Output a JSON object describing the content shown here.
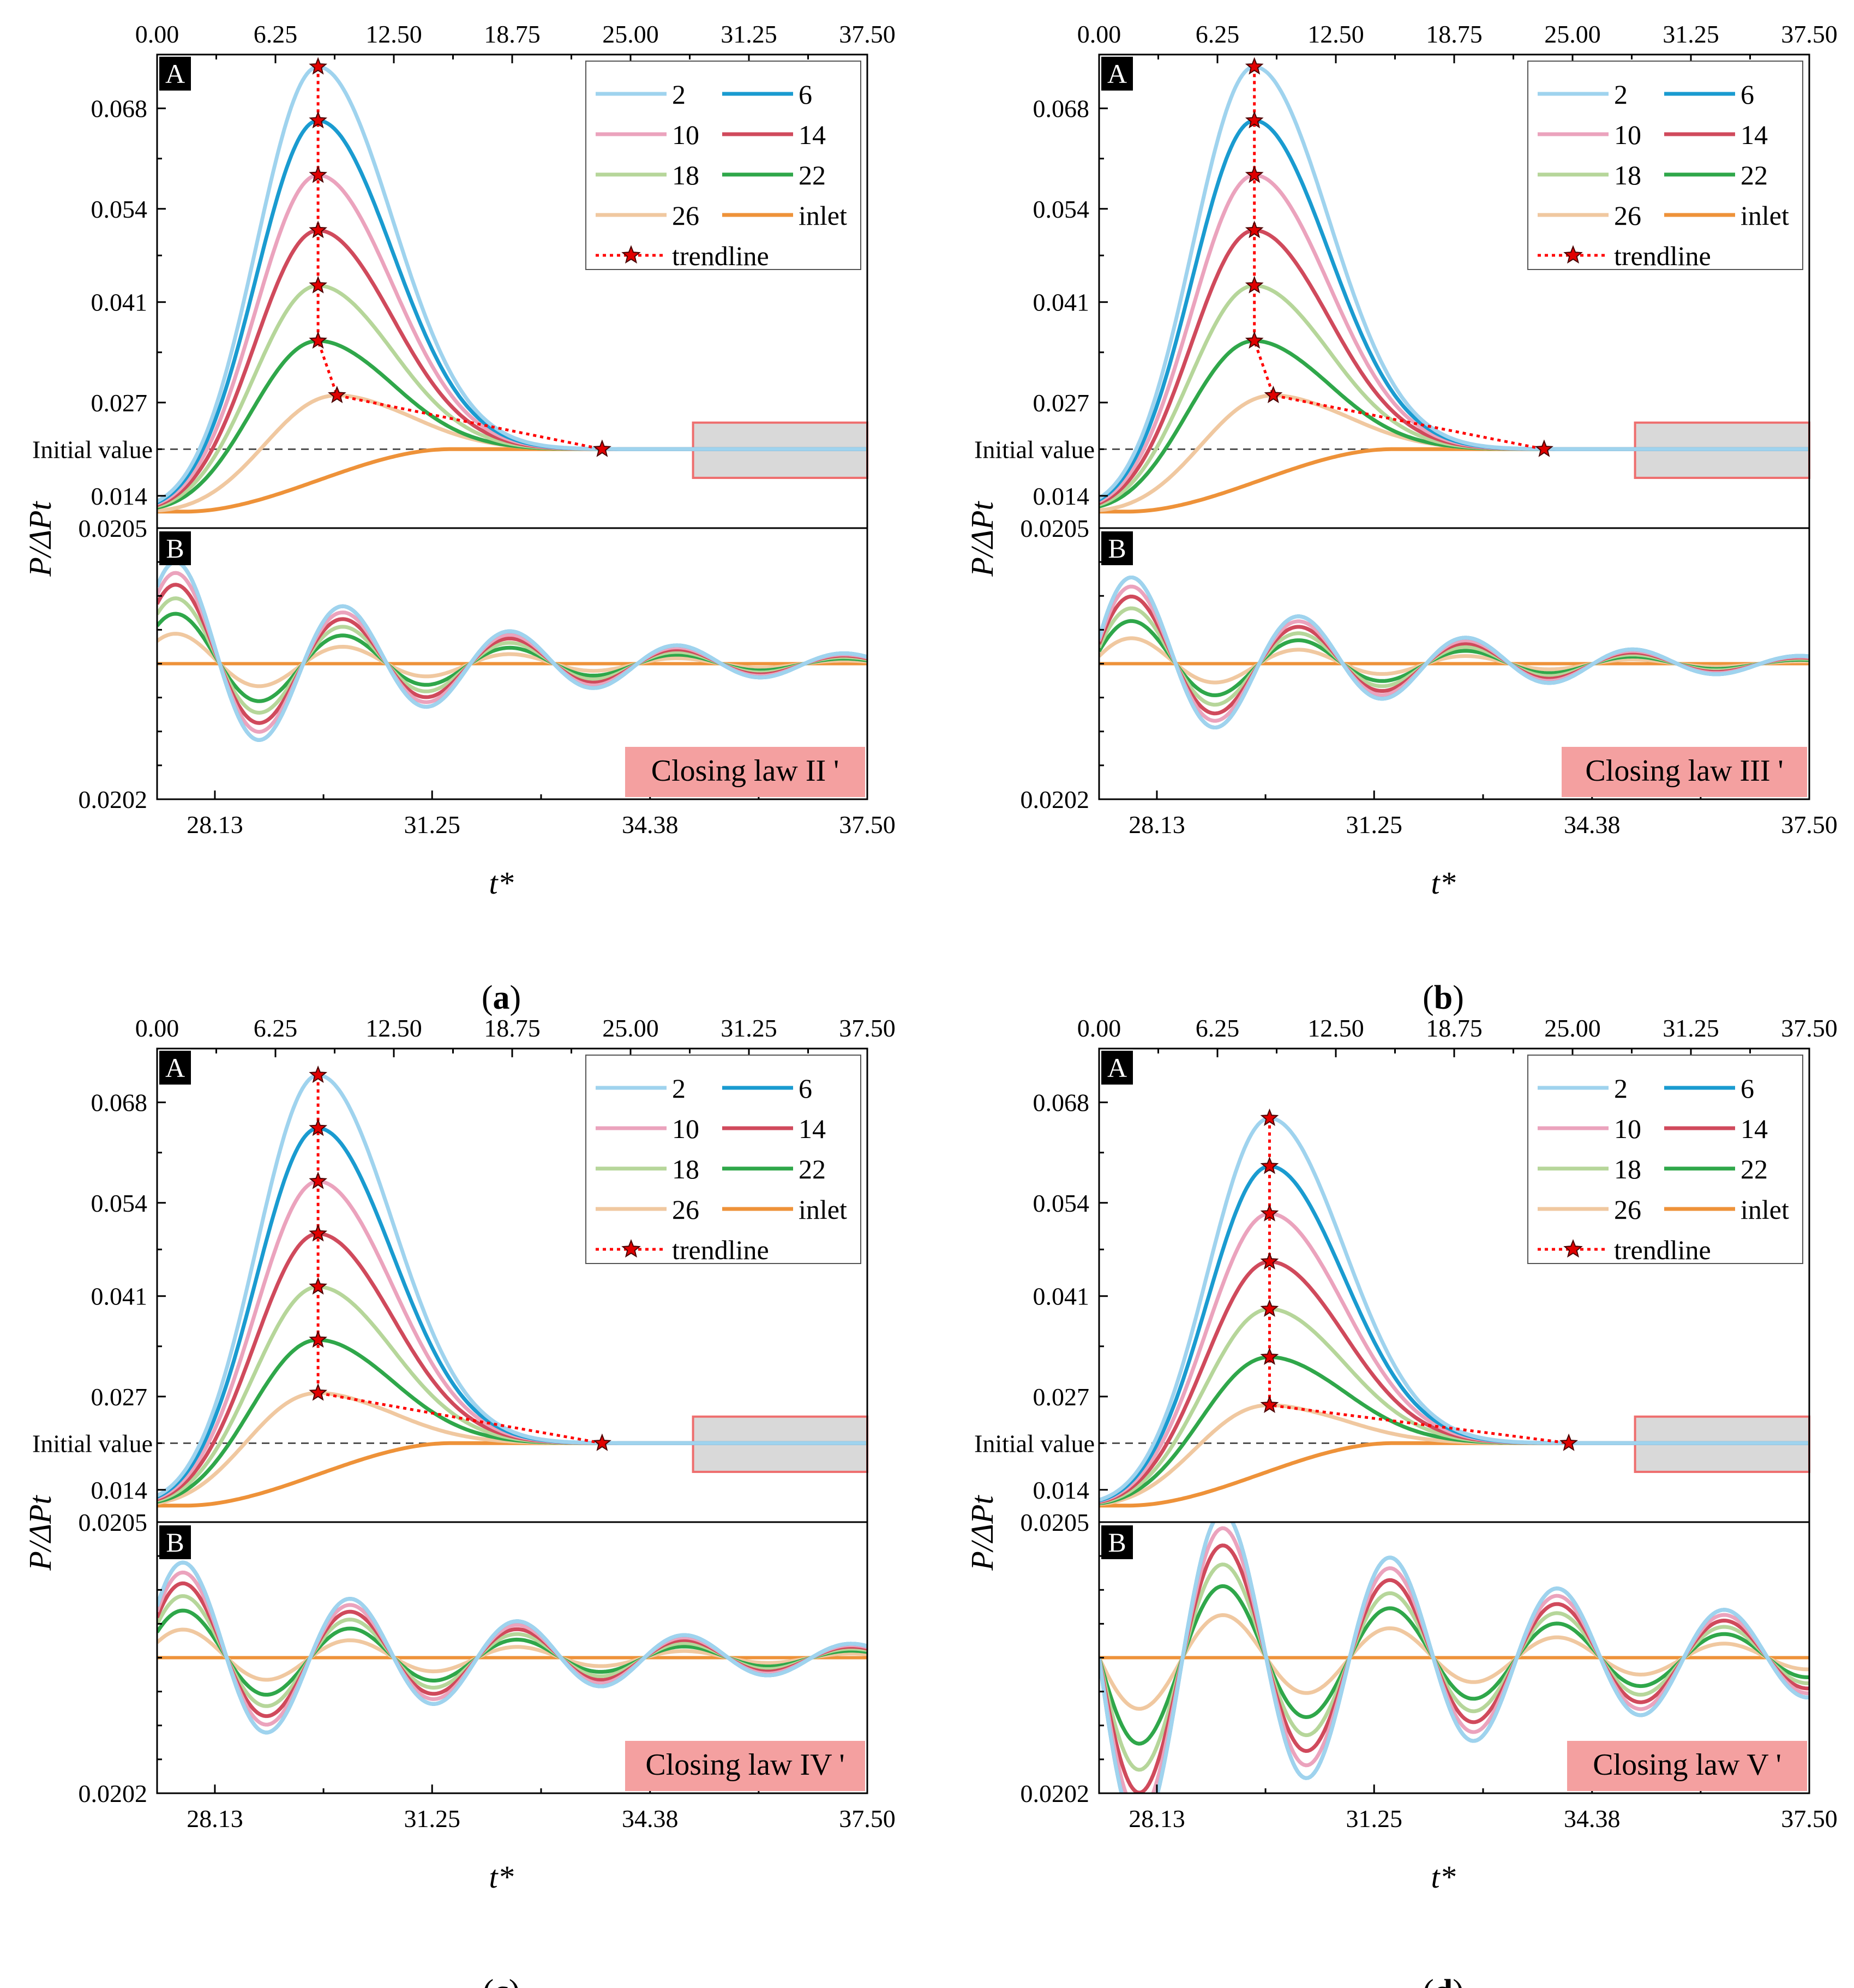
{
  "figure": {
    "panels": [
      {
        "id": "a",
        "caption": "a",
        "law_label": "Closing law II '"
      },
      {
        "id": "b",
        "caption": "b",
        "law_label": "Closing law III '"
      },
      {
        "id": "c",
        "caption": "c",
        "law_label": "Closing law IV '"
      },
      {
        "id": "d",
        "caption": "d",
        "law_label": "Closing law V '"
      }
    ],
    "subplot_tags": [
      "A",
      "B"
    ],
    "y_axis_label": "P/ΔPt",
    "x_axis_label": "t*",
    "initial_value_label": "Initial value",
    "top_x_ticks": [
      "0.00",
      "6.25",
      "12.50",
      "18.75",
      "25.00",
      "31.25",
      "37.50"
    ],
    "upper_y_ticks": [
      "0.068",
      "0.054",
      "0.041",
      "0.027",
      "0.014"
    ],
    "lower_y_ticks": [
      "0.0205",
      "0.0202"
    ],
    "bottom_x_ticks": [
      "28.13",
      "31.25",
      "34.38",
      "37.50"
    ],
    "legend": [
      {
        "label": "2",
        "color": "#9fd3ee"
      },
      {
        "label": "6",
        "color": "#1a9bd0"
      },
      {
        "label": "10",
        "color": "#eba3bd"
      },
      {
        "label": "14",
        "color": "#d04a5c"
      },
      {
        "label": "18",
        "color": "#b6d69a"
      },
      {
        "label": "22",
        "color": "#2fa74a"
      },
      {
        "label": "26",
        "color": "#f0c8a0"
      },
      {
        "label": "inlet",
        "color": "#ee9239"
      },
      {
        "label": "trendline",
        "color": "#ff0000"
      }
    ]
  },
  "chart_data": [
    {
      "type": "line",
      "panel": "a",
      "title": "Closing law II '",
      "xlabel": "t*",
      "ylabel": "P/ΔPt",
      "upper": {
        "xlim": [
          0,
          37.5
        ],
        "ylim": [
          0.0095,
          0.0755
        ],
        "initial_value": 0.0205,
        "series": [
          {
            "name": "2",
            "peak_t": 8.5,
            "peak": 0.0738
          },
          {
            "name": "6",
            "peak_t": 8.5,
            "peak": 0.0663
          },
          {
            "name": "10",
            "peak_t": 8.5,
            "peak": 0.0587
          },
          {
            "name": "14",
            "peak_t": 8.5,
            "peak": 0.051
          },
          {
            "name": "18",
            "peak_t": 8.5,
            "peak": 0.0433
          },
          {
            "name": "22",
            "peak_t": 8.5,
            "peak": 0.0356
          },
          {
            "name": "26",
            "peak_t": 9.5,
            "peak": 0.028
          },
          {
            "name": "inlet",
            "start": 0.0118,
            "end": 0.0205
          }
        ],
        "trendline": [
          [
            8.5,
            0.0738
          ],
          [
            8.5,
            0.0663
          ],
          [
            8.5,
            0.0587
          ],
          [
            8.5,
            0.051
          ],
          [
            8.5,
            0.0433
          ],
          [
            8.5,
            0.0356
          ],
          [
            9.5,
            0.028
          ],
          [
            23.5,
            0.0205
          ]
        ]
      },
      "lower": {
        "xlim": [
          27.3,
          37.5
        ],
        "ylim": [
          0.0202,
          0.0205
        ],
        "first_peak_t": 27.6,
        "period": 2.4,
        "decay": 4.2,
        "amplitudes": {
          "2": 0.000112,
          "6": 0.000112,
          "10": 0.0001,
          "14": 8.7e-05,
          "18": 7.2e-05,
          "22": 5.5e-05,
          "26": 3.3e-05
        }
      }
    },
    {
      "type": "line",
      "panel": "b",
      "title": "Closing law III '",
      "xlabel": "t*",
      "ylabel": "P/ΔPt",
      "upper": {
        "xlim": [
          0,
          37.5
        ],
        "ylim": [
          0.0095,
          0.0755
        ],
        "initial_value": 0.0205,
        "series": [
          {
            "name": "2",
            "peak_t": 8.2,
            "peak": 0.0738
          },
          {
            "name": "6",
            "peak_t": 8.2,
            "peak": 0.0663
          },
          {
            "name": "10",
            "peak_t": 8.2,
            "peak": 0.0587
          },
          {
            "name": "14",
            "peak_t": 8.2,
            "peak": 0.051
          },
          {
            "name": "18",
            "peak_t": 8.2,
            "peak": 0.0433
          },
          {
            "name": "22",
            "peak_t": 8.2,
            "peak": 0.0356
          },
          {
            "name": "26",
            "peak_t": 9.2,
            "peak": 0.028
          },
          {
            "name": "inlet",
            "start": 0.0118,
            "end": 0.0205
          }
        ],
        "trendline": [
          [
            8.2,
            0.0738
          ],
          [
            8.2,
            0.0663
          ],
          [
            8.2,
            0.0587
          ],
          [
            8.2,
            0.051
          ],
          [
            8.2,
            0.0433
          ],
          [
            8.2,
            0.0356
          ],
          [
            9.2,
            0.028
          ],
          [
            23.5,
            0.0205
          ]
        ]
      },
      "lower": {
        "xlim": [
          27.3,
          37.5
        ],
        "ylim": [
          0.0202,
          0.0205
        ],
        "first_peak_t": 27.8,
        "period": 2.4,
        "decay": 4.0,
        "amplitudes": {
          "2": 9.5e-05,
          "6": 9.5e-05,
          "10": 8.5e-05,
          "14": 7.4e-05,
          "18": 6.1e-05,
          "22": 4.7e-05,
          "26": 2.8e-05
        }
      }
    },
    {
      "type": "line",
      "panel": "c",
      "title": "Closing law IV '",
      "xlabel": "t*",
      "ylabel": "P/ΔPt",
      "upper": {
        "xlim": [
          0,
          37.5
        ],
        "ylim": [
          0.0095,
          0.0755
        ],
        "initial_value": 0.0205,
        "series": [
          {
            "name": "2",
            "peak_t": 8.5,
            "peak": 0.0718
          },
          {
            "name": "6",
            "peak_t": 8.5,
            "peak": 0.0644
          },
          {
            "name": "10",
            "peak_t": 8.5,
            "peak": 0.057
          },
          {
            "name": "14",
            "peak_t": 8.5,
            "peak": 0.0497
          },
          {
            "name": "18",
            "peak_t": 8.5,
            "peak": 0.0423
          },
          {
            "name": "22",
            "peak_t": 8.5,
            "peak": 0.0349
          },
          {
            "name": "26",
            "peak_t": 8.5,
            "peak": 0.0275
          },
          {
            "name": "inlet",
            "start": 0.0118,
            "end": 0.0205
          }
        ],
        "trendline": [
          [
            8.5,
            0.0718
          ],
          [
            8.5,
            0.0644
          ],
          [
            8.5,
            0.057
          ],
          [
            8.5,
            0.0497
          ],
          [
            8.5,
            0.0423
          ],
          [
            8.5,
            0.0349
          ],
          [
            8.5,
            0.0275
          ],
          [
            23.5,
            0.0205
          ]
        ]
      },
      "lower": {
        "xlim": [
          27.3,
          37.5
        ],
        "ylim": [
          0.0202,
          0.0205
        ],
        "first_peak_t": 27.7,
        "period": 2.4,
        "decay": 5.0,
        "amplitudes": {
          "2": 0.000105,
          "6": 0.000105,
          "10": 9.4e-05,
          "14": 8.2e-05,
          "18": 6.8e-05,
          "22": 5.2e-05,
          "26": 3.1e-05
        }
      }
    },
    {
      "type": "line",
      "panel": "d",
      "title": "Closing law V '",
      "xlabel": "t*",
      "ylabel": "P/ΔPt",
      "upper": {
        "xlim": [
          0,
          37.5
        ],
        "ylim": [
          0.0095,
          0.0755
        ],
        "initial_value": 0.0205,
        "series": [
          {
            "name": "2",
            "peak_t": 9.0,
            "peak": 0.0658
          },
          {
            "name": "6",
            "peak_t": 9.0,
            "peak": 0.0591
          },
          {
            "name": "10",
            "peak_t": 9.0,
            "peak": 0.0525
          },
          {
            "name": "14",
            "peak_t": 9.0,
            "peak": 0.0458
          },
          {
            "name": "18",
            "peak_t": 9.0,
            "peak": 0.0392
          },
          {
            "name": "22",
            "peak_t": 9.0,
            "peak": 0.0325
          },
          {
            "name": "26",
            "peak_t": 9.0,
            "peak": 0.0258
          },
          {
            "name": "inlet",
            "start": 0.0118,
            "end": 0.0205
          }
        ],
        "trendline": [
          [
            9.0,
            0.0658
          ],
          [
            9.0,
            0.0591
          ],
          [
            9.0,
            0.0525
          ],
          [
            9.0,
            0.0458
          ],
          [
            9.0,
            0.0392
          ],
          [
            9.0,
            0.0325
          ],
          [
            9.0,
            0.0258
          ],
          [
            24.8,
            0.0205
          ]
        ]
      },
      "lower": {
        "xlim": [
          27.3,
          37.5
        ],
        "ylim": [
          0.0202,
          0.0205
        ],
        "first_peak_t": 29.1,
        "period": 2.4,
        "decay": 6.5,
        "amplitudes": {
          "2": 0.00016,
          "6": 0.00016,
          "10": 0.000143,
          "14": 0.000124,
          "18": 0.000103,
          "22": 7.9e-05,
          "26": 4.7e-05
        }
      }
    }
  ]
}
